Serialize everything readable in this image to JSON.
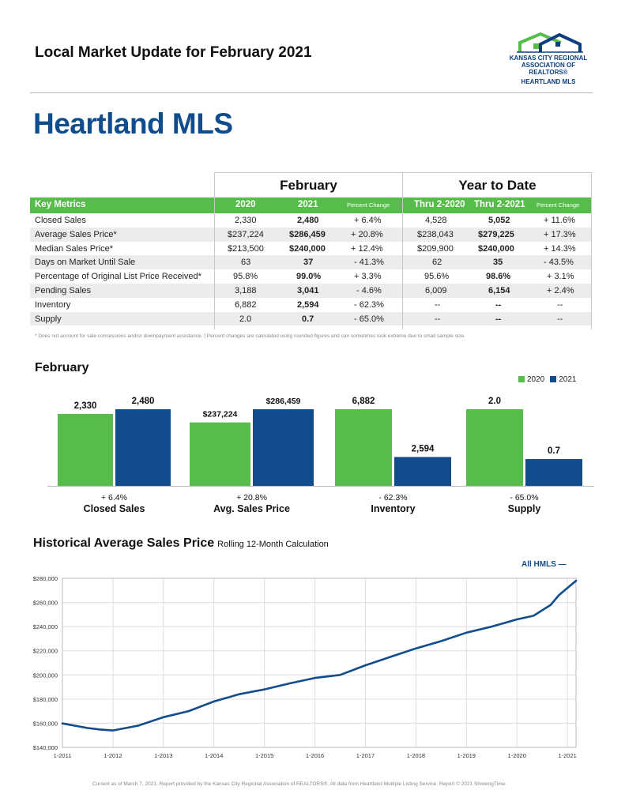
{
  "header": {
    "title": "Local Market Update for February 2021"
  },
  "logo": {
    "line1": "KANSAS CITY REGIONAL",
    "line2": "ASSOCIATION OF REALTORS®",
    "line3": "HEARTLAND MLS",
    "colors": {
      "green": "#56bd4b",
      "blue": "#0d3f80"
    }
  },
  "page_title": "Heartland MLS",
  "metrics": {
    "group_feb": "February",
    "group_ytd": "Year to Date",
    "headers": [
      "Key Metrics",
      "2020",
      "2021",
      "Percent Change",
      "Thru 2-2020",
      "Thru 2-2021",
      "Percent Change"
    ],
    "rows": [
      [
        "Closed Sales",
        "2,330",
        "2,480",
        "+ 6.4%",
        "4,528",
        "5,052",
        "+ 11.6%"
      ],
      [
        "Average Sales Price*",
        "$237,224",
        "$286,459",
        "+ 20.8%",
        "$238,043",
        "$279,225",
        "+ 17.3%"
      ],
      [
        "Median Sales Price*",
        "$213,500",
        "$240,000",
        "+ 12.4%",
        "$209,900",
        "$240,000",
        "+ 14.3%"
      ],
      [
        "Days on Market Until Sale",
        "63",
        "37",
        "- 41.3%",
        "62",
        "35",
        "- 43.5%"
      ],
      [
        "Percentage of Original List Price Received*",
        "95.8%",
        "99.0%",
        "+ 3.3%",
        "95.6%",
        "98.6%",
        "+ 3.1%"
      ],
      [
        "Pending Sales",
        "3,188",
        "3,041",
        "- 4.6%",
        "6,009",
        "6,154",
        "+ 2.4%"
      ],
      [
        "Inventory",
        "6,882",
        "2,594",
        "- 62.3%",
        "--",
        "--",
        "--"
      ],
      [
        "Supply",
        "2.0",
        "0.7",
        "- 65.0%",
        "--",
        "--",
        "--"
      ]
    ],
    "footnote": "* Does not account for sale concessions and/or downpayment assistance.  |  Percent changes are calculated using rounded figures and can sometimes look extreme due to small sample size."
  },
  "bar_section": {
    "title": "February",
    "legend": [
      "2020",
      "2021"
    ]
  },
  "hist_section": {
    "title": "Historical Average Sales Price",
    "subtitle": "Rolling 12-Month Calculation",
    "legend": "All HMLS  —"
  },
  "footer": "Current as of March 7, 2021. Report provided by the Kansas City Regional Association of REALTORS®. All data from Heartland Multiple Listing Service. Report © 2021 ShowingTime.",
  "chart_data": [
    {
      "type": "bar",
      "title": "February",
      "colors": {
        "2020": "#56bd4b",
        "2021": "#114d8c"
      },
      "groups": [
        {
          "name": "Closed Sales",
          "change": "+ 6.4%",
          "values": [
            2330,
            2480
          ],
          "labels": [
            "2,330",
            "2,480"
          ]
        },
        {
          "name": "Avg. Sales Price",
          "change": "+ 20.8%",
          "values": [
            237224,
            286459
          ],
          "labels": [
            "$237,224",
            "$286,459"
          ]
        },
        {
          "name": "Inventory",
          "change": "- 62.3%",
          "values": [
            6882,
            2594
          ],
          "labels": [
            "6,882",
            "2,594"
          ]
        },
        {
          "name": "Supply",
          "change": "- 65.0%",
          "values": [
            2.0,
            0.7
          ],
          "labels": [
            "2.0",
            "0.7"
          ]
        }
      ],
      "series": [
        {
          "name": "2020"
        },
        {
          "name": "2021"
        }
      ]
    },
    {
      "type": "line",
      "title": "Historical Average Sales Price",
      "series_name": "All HMLS",
      "color": "#114d8c",
      "ylim": [
        140000,
        280000
      ],
      "yticks": [
        140000,
        160000,
        180000,
        200000,
        220000,
        240000,
        260000,
        280000
      ],
      "ytick_labels": [
        "$140,000",
        "$160,000",
        "$180,000",
        "$200,000",
        "$220,000",
        "$240,000",
        "$260,000",
        "$280,000"
      ],
      "xticks": [
        "1-2011",
        "1-2012",
        "1-2013",
        "1-2014",
        "1-2015",
        "1-2016",
        "1-2017",
        "1-2018",
        "1-2019",
        "1-2020",
        "1-2021"
      ],
      "x": [
        2011.0,
        2011.5,
        2011.75,
        2012.0,
        2012.5,
        2013.0,
        2013.5,
        2014.0,
        2014.5,
        2015.0,
        2015.5,
        2016.0,
        2016.5,
        2017.0,
        2017.5,
        2018.0,
        2018.5,
        2019.0,
        2019.5,
        2020.0,
        2020.33,
        2020.67,
        2020.83,
        2021.0,
        2021.17
      ],
      "y": [
        159800,
        156000,
        154800,
        154000,
        158000,
        165000,
        170000,
        178000,
        184000,
        188000,
        193000,
        197500,
        200000,
        208000,
        215000,
        222000,
        228000,
        235000,
        240000,
        246000,
        249000,
        258000,
        266000,
        272000,
        278000
      ]
    }
  ]
}
